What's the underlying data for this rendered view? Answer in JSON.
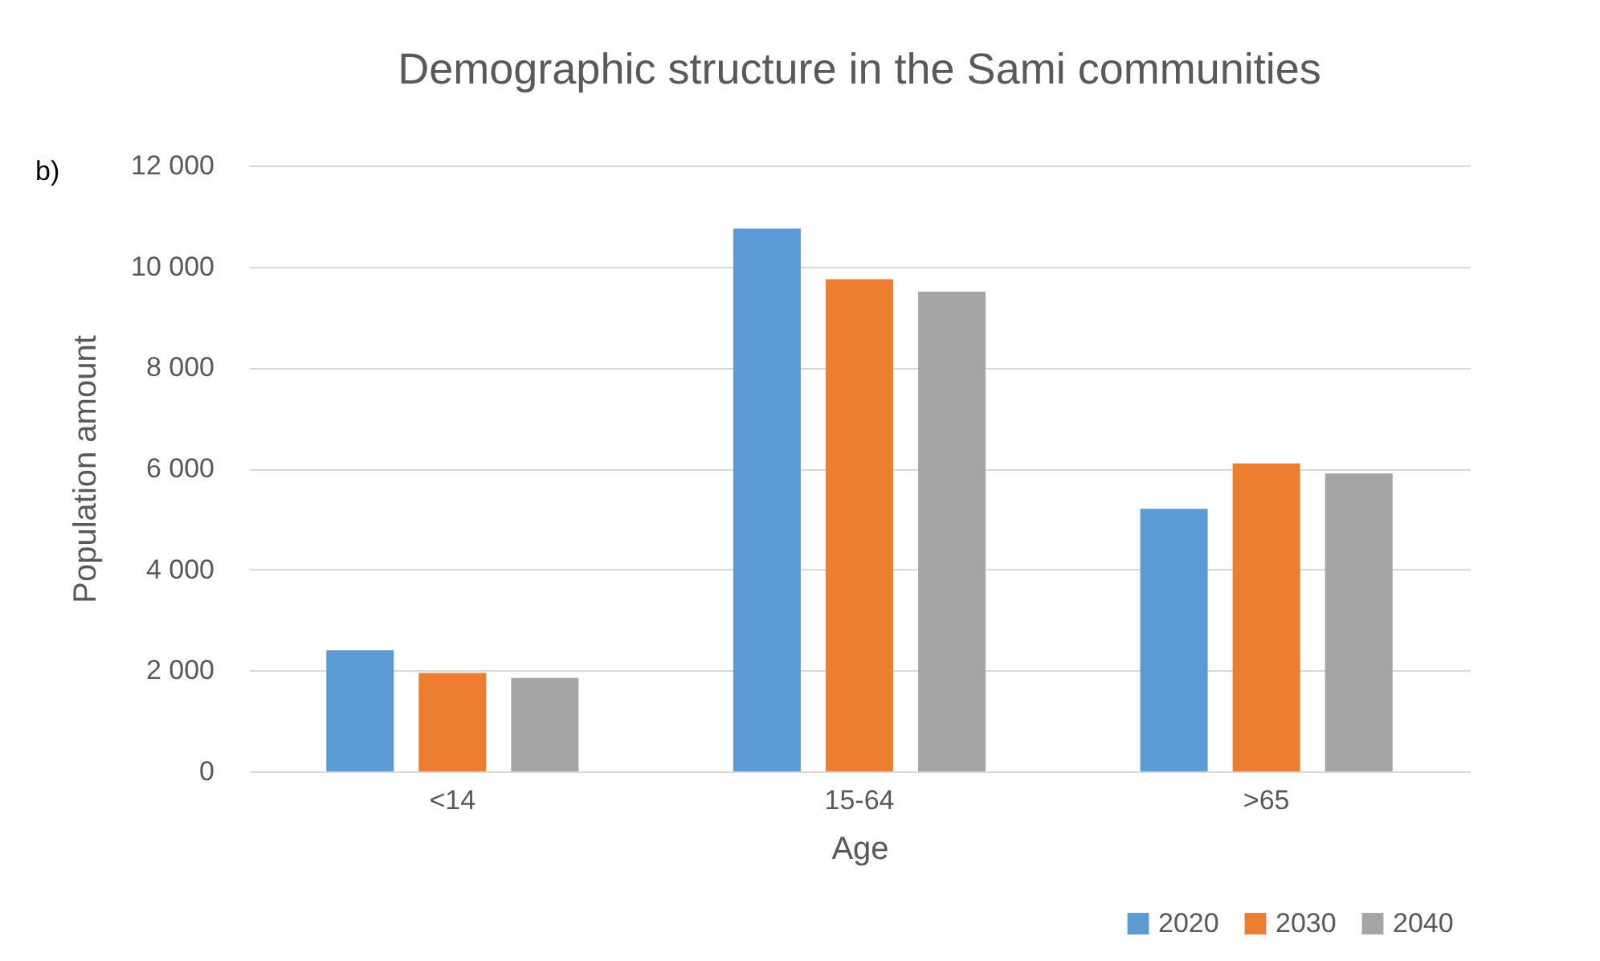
{
  "chart_data": {
    "type": "bar",
    "title": "Demographic structure in the Sami communities",
    "xlabel": "Age",
    "ylabel": "Population amount",
    "annotations": [
      "b)"
    ],
    "categories": [
      "<14",
      "15-64",
      ">65"
    ],
    "series": [
      {
        "name": "2020",
        "color": "#5b9bd5",
        "values": [
          2400,
          10750,
          5200
        ]
      },
      {
        "name": "2030",
        "color": "#ed7d31",
        "values": [
          1950,
          9750,
          6100
        ]
      },
      {
        "name": "2040",
        "color": "#a5a5a5",
        "values": [
          1850,
          9500,
          5900
        ]
      }
    ],
    "ylim": [
      0,
      12000
    ],
    "yticks": [
      {
        "value": 0,
        "label": "0"
      },
      {
        "value": 2000,
        "label": "2 000"
      },
      {
        "value": 4000,
        "label": "4 000"
      },
      {
        "value": 6000,
        "label": "6 000"
      },
      {
        "value": 8000,
        "label": "8 000"
      },
      {
        "value": 10000,
        "label": "10 000"
      },
      {
        "value": 12000,
        "label": "12 000"
      }
    ],
    "grid": "y",
    "legend": "bottom right"
  }
}
